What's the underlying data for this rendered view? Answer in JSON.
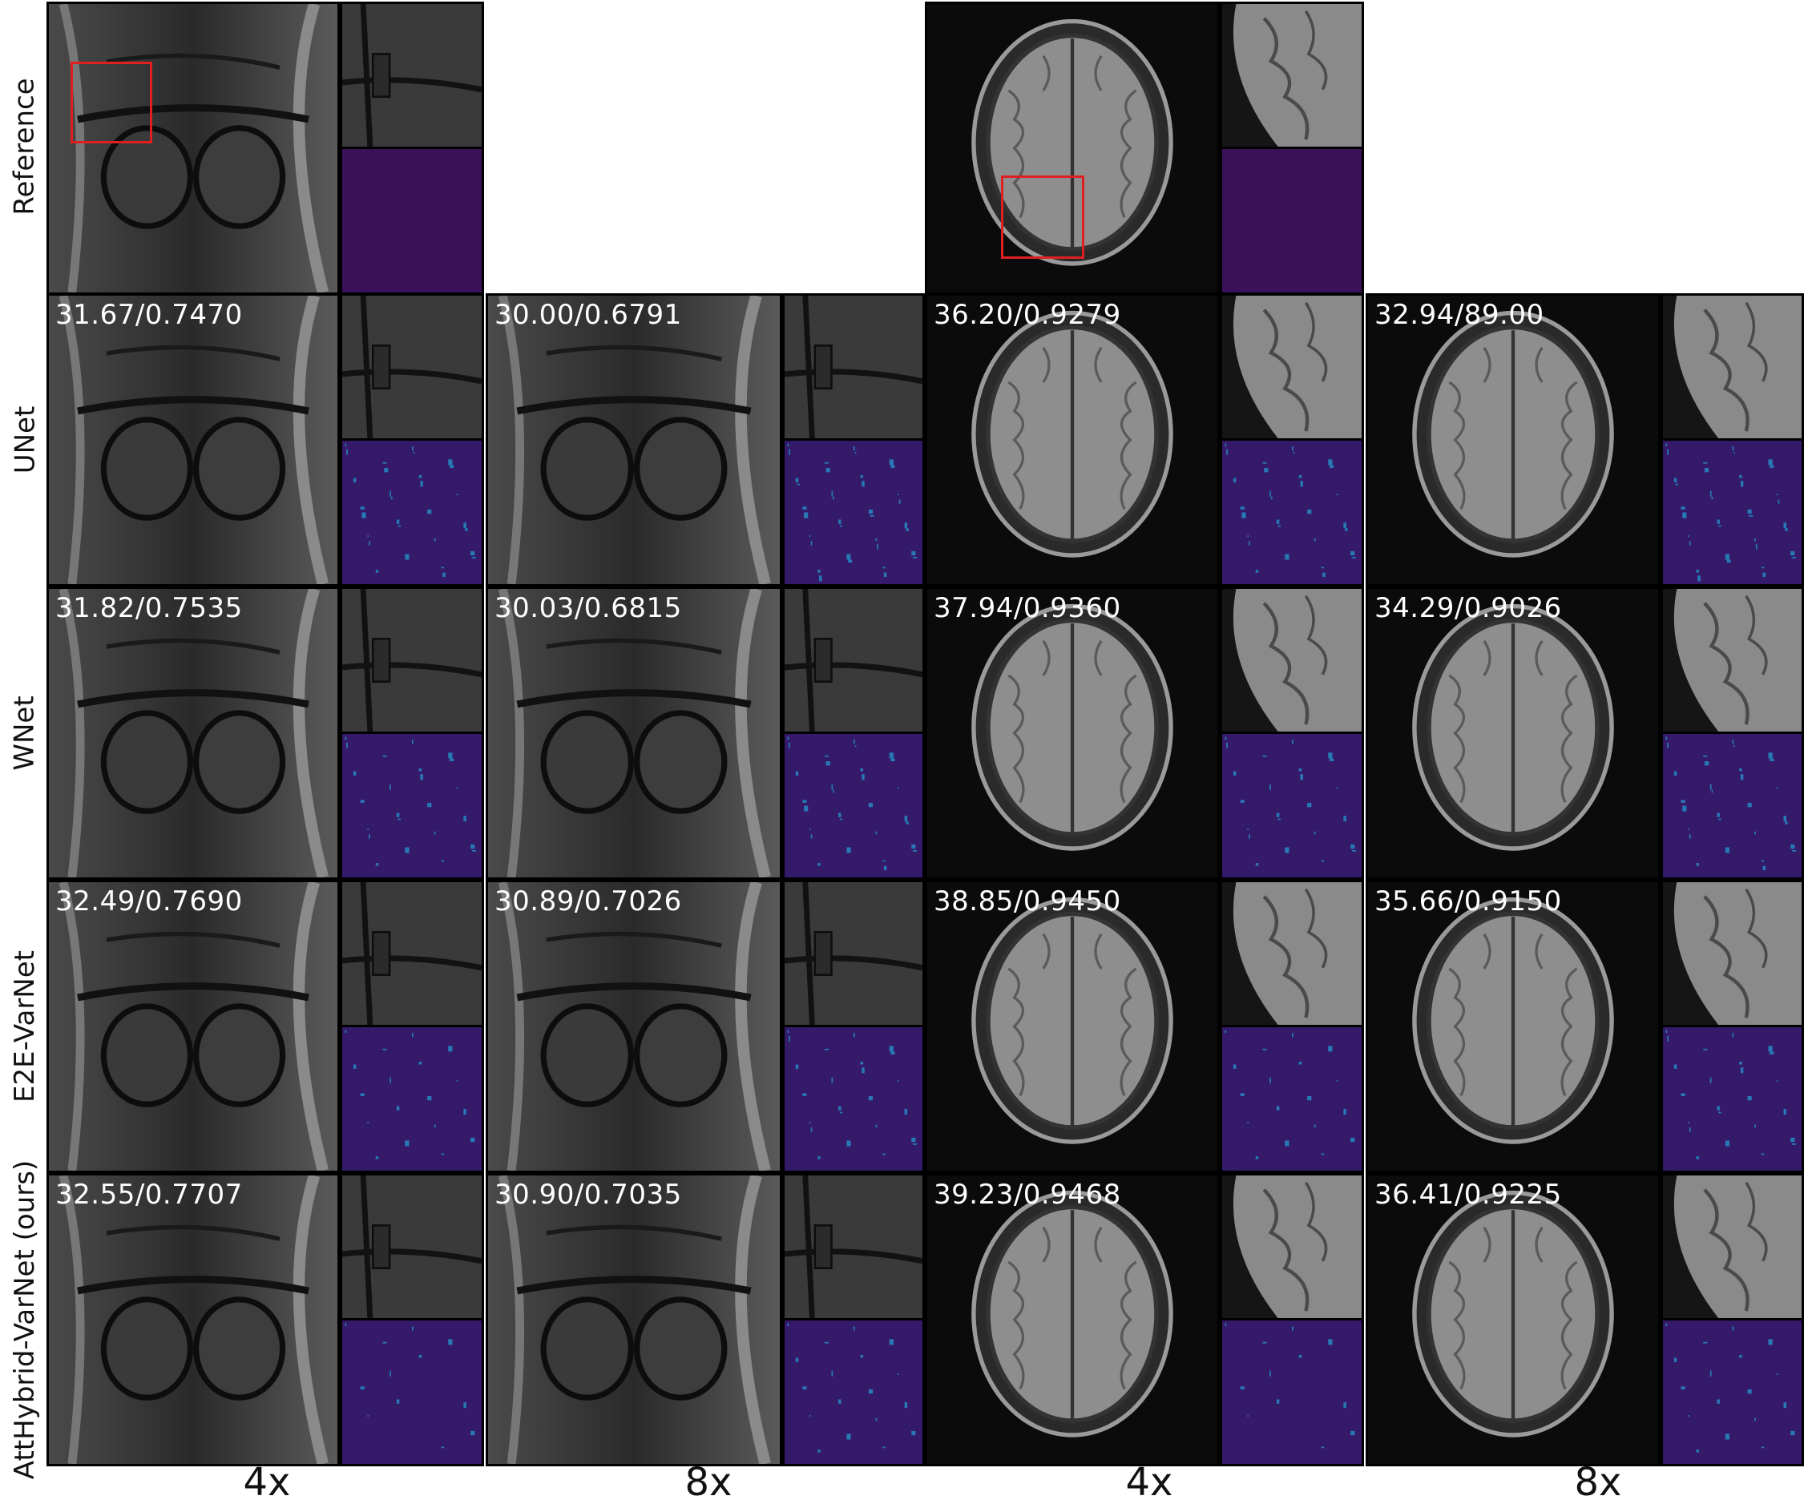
{
  "figure": {
    "row_labels": [
      "Reference",
      "UNet",
      "WNet",
      "E2E-VarNet",
      "AttHybrid-VarNet (ours)"
    ],
    "column_labels": [
      "4x",
      "8x",
      "4x",
      "8x"
    ],
    "metrics": {
      "unet": [
        "31.67/0.7470",
        "30.00/0.6791",
        "36.20/0.9279",
        "32.94/89.00"
      ],
      "wnet": [
        "31.82/0.7535",
        "30.03/0.6815",
        "37.94/0.9360",
        "34.29/0.9026"
      ],
      "e2e": [
        "32.49/0.7690",
        "30.89/0.7026",
        "38.85/0.9450",
        "35.66/0.9150"
      ],
      "atthybrid": [
        "32.55/0.7707",
        "30.90/0.7035",
        "39.23/0.9468",
        "36.41/0.9225"
      ]
    },
    "colors": {
      "roi_box": "#e02020",
      "error_map_background": "#3b1259",
      "error_highlight": "#1fb8e8"
    }
  }
}
